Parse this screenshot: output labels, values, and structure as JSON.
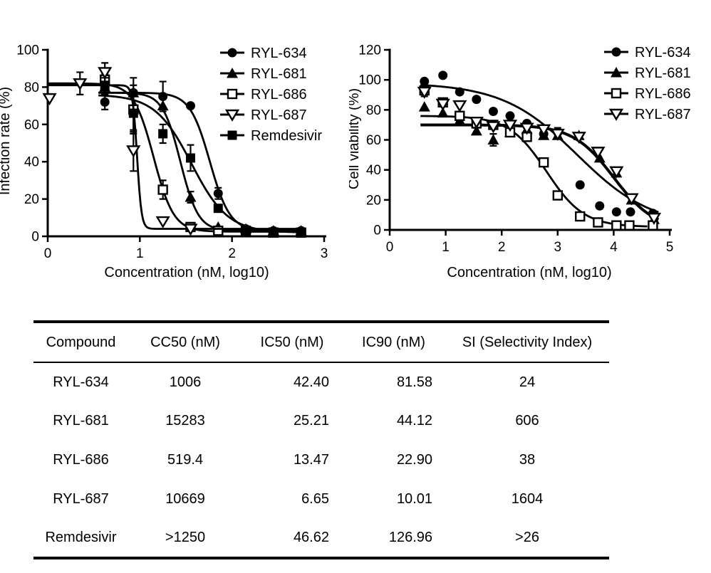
{
  "colors": {
    "ink": "#000000",
    "paper": "#ffffff"
  },
  "chart_data": [
    {
      "type": "line-scatter",
      "title": "",
      "xlabel": "Concentration (nM, log10)",
      "ylabel": "Infection rate (%)",
      "xlim": [
        0,
        3
      ],
      "ylim": [
        0,
        100
      ],
      "xticks": [
        0,
        1,
        2,
        3
      ],
      "yticks": [
        0,
        20,
        40,
        60,
        80,
        100
      ],
      "grid": false,
      "legend_position": "top-right-inside",
      "legend_entries": [
        "RYL-634",
        "RYL-681",
        "RYL-686",
        "RYL-687",
        "Remdesivir"
      ],
      "series": [
        {
          "name": "RYL-634",
          "marker": "circle-filled",
          "curve": {
            "top": 77,
            "bottom": 3,
            "mid": 1.76,
            "hill": 4,
            "x0": 0.55,
            "x1": 2.8
          },
          "points": [
            [
              0.62,
              72,
              4
            ],
            [
              0.93,
              77,
              0
            ],
            [
              1.25,
              75,
              8
            ],
            [
              1.55,
              70,
              0
            ],
            [
              1.85,
              23,
              3
            ],
            [
              2.15,
              4,
              0
            ],
            [
              2.45,
              3,
              0
            ],
            [
              2.75,
              3,
              0
            ]
          ]
        },
        {
          "name": "RYL-681",
          "marker": "triangle-filled",
          "curve": {
            "top": 77,
            "bottom": 3,
            "mid": 1.44,
            "hill": 4.5,
            "x0": 0.55,
            "x1": 2.8
          },
          "points": [
            [
              0.62,
              80,
              4
            ],
            [
              0.93,
              77,
              8
            ],
            [
              1.25,
              70,
              0
            ],
            [
              1.55,
              21,
              3
            ],
            [
              1.85,
              5,
              0
            ],
            [
              2.15,
              4,
              0
            ],
            [
              2.45,
              3,
              0
            ],
            [
              2.75,
              3,
              0
            ]
          ]
        },
        {
          "name": "RYL-686",
          "marker": "square-open",
          "curve": {
            "top": 82,
            "bottom": 2.5,
            "mid": 1.15,
            "hill": 4,
            "x0": 0,
            "x1": 2.8
          },
          "points": [
            [
              0.62,
              84,
              3
            ],
            [
              0.93,
              68,
              13
            ],
            [
              1.25,
              25,
              5
            ],
            [
              1.55,
              5,
              0
            ],
            [
              1.85,
              3,
              0
            ],
            [
              2.15,
              3,
              0
            ],
            [
              2.45,
              2,
              0
            ],
            [
              2.75,
              2,
              0
            ]
          ]
        },
        {
          "name": "RYL-687",
          "marker": "triangle-down-open",
          "curve": {
            "top": 81,
            "bottom": 4,
            "mid": 0.97,
            "hill": 18,
            "x0": 0,
            "x1": 2.8
          },
          "points": [
            [
              0.02,
              74,
              0
            ],
            [
              0.35,
              82,
              6
            ],
            [
              0.62,
              88,
              5
            ],
            [
              0.93,
              46,
              11
            ],
            [
              1.25,
              8,
              0
            ],
            [
              1.55,
              4,
              0
            ]
          ]
        },
        {
          "name": "Remdesivir",
          "marker": "square-filled",
          "curve": {
            "top": 76,
            "bottom": 2,
            "mid": 1.56,
            "hill": 2.2,
            "x0": 0.55,
            "x1": 2.8
          },
          "points": [
            [
              0.62,
              81,
              4
            ],
            [
              0.93,
              66,
              10
            ],
            [
              1.25,
              55,
              5
            ],
            [
              1.55,
              42,
              7
            ],
            [
              1.85,
              15,
              2
            ],
            [
              2.15,
              3,
              0
            ],
            [
              2.45,
              2,
              0
            ],
            [
              2.75,
              2,
              0
            ]
          ]
        }
      ]
    },
    {
      "type": "line-scatter",
      "title": "",
      "xlabel": "Concentration (nM, log10)",
      "ylabel": "Cell viability (%)",
      "xlim": [
        0,
        5
      ],
      "ylim": [
        0,
        120
      ],
      "xticks": [
        0,
        1,
        2,
        3,
        4,
        5
      ],
      "yticks": [
        0,
        20,
        40,
        60,
        80,
        100,
        120
      ],
      "grid": false,
      "legend_position": "top-right-inside",
      "legend_entries": [
        "RYL-634",
        "RYL-681",
        "RYL-686",
        "RYL-687"
      ],
      "series": [
        {
          "name": "RYL-634",
          "marker": "circle-filled",
          "curve": {
            "top": 98,
            "bottom": 2,
            "mid": 3.35,
            "hill": 0.65,
            "x0": 0.55,
            "x1": 4.8
          },
          "points": [
            [
              0.62,
              99,
              0
            ],
            [
              0.95,
              103,
              0
            ],
            [
              1.25,
              92,
              0
            ],
            [
              1.55,
              87,
              0
            ],
            [
              1.85,
              79,
              0
            ],
            [
              2.15,
              76,
              0
            ],
            [
              2.45,
              71,
              0
            ],
            [
              2.75,
              64,
              0
            ],
            [
              3.0,
              65,
              3
            ],
            [
              3.4,
              30,
              0
            ],
            [
              3.75,
              16,
              0
            ],
            [
              4.05,
              12,
              0
            ],
            [
              4.3,
              12,
              0
            ],
            [
              4.7,
              11,
              0
            ]
          ]
        },
        {
          "name": "RYL-681",
          "marker": "triangle-filled",
          "curve": {
            "top": 70,
            "bottom": 0,
            "mid": 4.0,
            "hill": 1.2,
            "x0": 0.55,
            "x1": 4.8,
            "lw": 4
          },
          "points": [
            [
              0.62,
              82,
              0
            ],
            [
              0.95,
              78,
              0
            ],
            [
              1.25,
              73,
              0
            ],
            [
              1.55,
              66,
              0
            ],
            [
              1.85,
              60,
              4
            ],
            [
              2.15,
              65,
              0
            ],
            [
              2.45,
              67,
              0
            ],
            [
              2.75,
              63,
              0
            ],
            [
              3.0,
              63,
              0
            ],
            [
              3.38,
              63,
              0
            ],
            [
              3.75,
              48,
              0
            ],
            [
              4.05,
              38,
              0
            ],
            [
              4.32,
              20,
              0
            ],
            [
              4.72,
              7,
              0
            ]
          ]
        },
        {
          "name": "RYL-686",
          "marker": "square-open",
          "curve": {
            "top": 76,
            "bottom": 2,
            "mid": 2.8,
            "hill": 1.3,
            "x0": 0.55,
            "x1": 4.6
          },
          "points": [
            [
              0.62,
              93,
              4
            ],
            [
              0.95,
              85,
              0
            ],
            [
              1.25,
              76,
              0
            ],
            [
              1.55,
              71,
              3
            ],
            [
              1.85,
              70,
              0
            ],
            [
              2.15,
              65,
              0
            ],
            [
              2.45,
              62,
              0
            ],
            [
              2.75,
              45,
              0
            ],
            [
              3.0,
              23,
              0
            ],
            [
              3.4,
              9,
              0
            ],
            [
              3.72,
              5,
              0
            ],
            [
              4.05,
              3,
              0
            ],
            [
              4.28,
              3,
              0
            ],
            [
              4.7,
              3,
              0
            ]
          ]
        },
        {
          "name": "RYL-687",
          "marker": "triangle-down-open",
          "curve": null,
          "points": [
            [
              0.62,
              92,
              0
            ],
            [
              0.95,
              84,
              0
            ],
            [
              1.25,
              83,
              0
            ],
            [
              1.55,
              72,
              0
            ],
            [
              1.85,
              69,
              0
            ],
            [
              2.15,
              70,
              0
            ],
            [
              2.45,
              68,
              3
            ],
            [
              2.75,
              67,
              0
            ],
            [
              3.0,
              64,
              0
            ],
            [
              3.38,
              62,
              0
            ],
            [
              3.72,
              52,
              0
            ],
            [
              4.05,
              39,
              0
            ],
            [
              4.32,
              21,
              0
            ],
            [
              4.72,
              8,
              0
            ]
          ]
        }
      ]
    }
  ],
  "table": {
    "columns": [
      "Compound",
      "CC50 (nM)",
      "IC50 (nM)",
      "IC90 (nM)",
      "SI (Selectivity Index)"
    ],
    "rows": [
      [
        "RYL-634",
        "1006",
        "42.40",
        "81.58",
        "24"
      ],
      [
        "RYL-681",
        "15283",
        "25.21",
        "44.12",
        "606"
      ],
      [
        "RYL-686",
        "519.4",
        "13.47",
        "22.90",
        "38"
      ],
      [
        "RYL-687",
        "10669",
        "6.65",
        "10.01",
        "1604"
      ],
      [
        "Remdesivir",
        ">1250",
        "46.62",
        "126.96",
        ">26"
      ]
    ]
  }
}
